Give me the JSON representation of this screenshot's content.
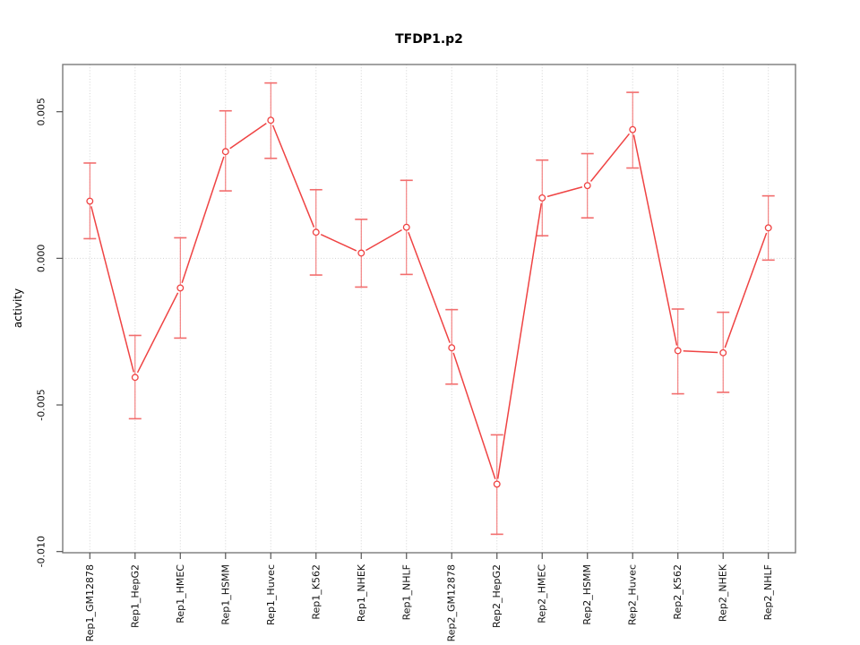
{
  "title": "TFDP1.p2",
  "axes": {
    "y_label": "activity",
    "y_tick_labels": [
      "0.005",
      "0.000",
      "-0.005",
      "-0.010"
    ],
    "y_tick_values": [
      0.005,
      0,
      -0.005,
      -0.01
    ]
  },
  "colors": {
    "series_red": "#ef4343",
    "error_bar_red": "#f26d6d",
    "grid_gray": "#d2d2d2",
    "box_gray": "#7a7a7a",
    "tick_gray": "#555555",
    "background": "#ffffff"
  },
  "chart_data": {
    "type": "line",
    "title": "TFDP1.p2",
    "xlabel": "",
    "ylabel": "activity",
    "legend": "none",
    "marker": "open-circle",
    "error_bars": true,
    "grid": {
      "vertical": "dotted line at every category",
      "horizontal": "dotted line at y=0 only"
    },
    "ylim": [
      -0.01004,
      0.00661
    ],
    "yticks": [
      0.005,
      0,
      -0.005,
      -0.01
    ],
    "ytick_labels": [
      "0.005",
      "0.000",
      "-0.005",
      "-0.010"
    ],
    "categories": [
      "Rep1_GM12878",
      "Rep1_HepG2",
      "Rep1_HMEC",
      "Rep1_HSMM",
      "Rep1_Huvec",
      "Rep1_K562",
      "Rep1_NHEK",
      "Rep1_NHLF",
      "Rep2_GM12878",
      "Rep2_HepG2",
      "Rep2_HMEC",
      "Rep2_HSMM",
      "Rep2_Huvec",
      "Rep2_K562",
      "Rep2_NHEK",
      "Rep2_NHLF"
    ],
    "series": [
      {
        "name": "activity",
        "values": [
          0.00195,
          -0.00406,
          -0.00101,
          0.00364,
          0.00471,
          0.00089,
          0.00018,
          0.00106,
          -0.00305,
          -0.0077,
          0.00206,
          0.00248,
          0.00439,
          -0.00315,
          -0.00322,
          0.00104
        ],
        "err_high": [
          0.00325,
          -0.00263,
          0.0007,
          0.00503,
          0.00598,
          0.00234,
          0.00133,
          0.00266,
          -0.00175,
          -0.00602,
          0.00335,
          0.00357,
          0.00566,
          -0.00173,
          -0.00184,
          0.00213
        ],
        "err_low": [
          0.00067,
          -0.00547,
          -0.00272,
          0.0023,
          0.00341,
          -0.00057,
          -0.00098,
          -0.00055,
          -0.00429,
          -0.00941,
          0.00077,
          0.00138,
          0.00308,
          -0.00462,
          -0.00457,
          -6e-05
        ]
      }
    ]
  }
}
